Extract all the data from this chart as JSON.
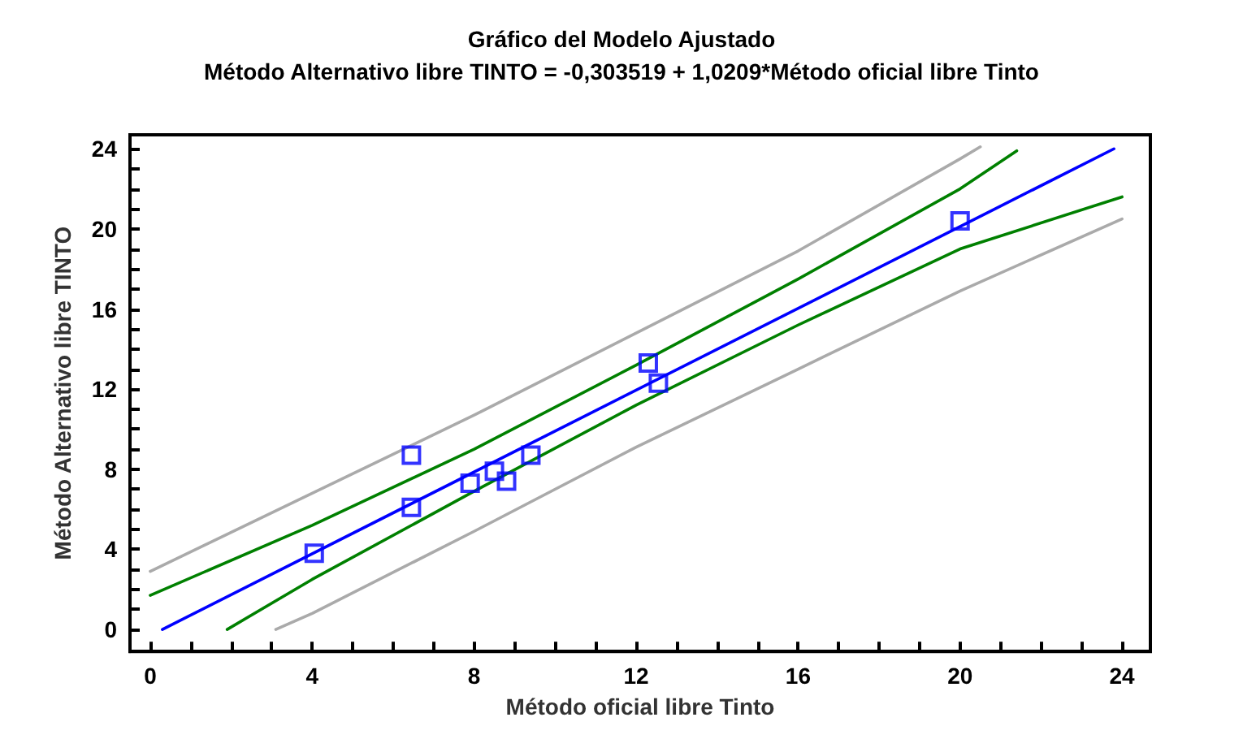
{
  "chart_data": {
    "type": "scatter",
    "title": "Gráfico del Modelo Ajustado",
    "subtitle": "Método Alternativo libre TINTO = -0,303519 + 1,0209*Método oficial libre Tinto",
    "xlabel": "Método oficial libre Tinto",
    "ylabel": "Método Alternativo libre TINTO",
    "xlim": [
      -0.5,
      24.7
    ],
    "ylim": [
      -1.1,
      24.7
    ],
    "xticks": [
      0,
      {
        "value": 1,
        "label": null
      },
      {
        "value": 2,
        "label": null
      },
      {
        "value": 3,
        "label": null
      },
      4,
      {
        "value": 5,
        "label": null
      },
      {
        "value": 6,
        "label": null
      },
      {
        "value": 7,
        "label": null
      },
      8,
      {
        "value": 9,
        "label": null
      },
      {
        "value": 10,
        "label": null
      },
      {
        "value": 11,
        "label": null
      },
      12,
      {
        "value": 13,
        "label": null
      },
      {
        "value": 14,
        "label": null
      },
      {
        "value": 15,
        "label": null
      },
      16,
      {
        "value": 17,
        "label": null
      },
      {
        "value": 18,
        "label": null
      },
      {
        "value": 19,
        "label": null
      },
      20,
      {
        "value": 21,
        "label": null
      },
      {
        "value": 22,
        "label": null
      },
      {
        "value": 23,
        "label": null
      },
      24
    ],
    "yticks": [
      0,
      {
        "value": 1,
        "label": null
      },
      {
        "value": 2,
        "label": null
      },
      {
        "value": 3,
        "label": null
      },
      4,
      {
        "value": 5,
        "label": null
      },
      {
        "value": 6,
        "label": null
      },
      {
        "value": 7,
        "label": null
      },
      8,
      {
        "value": 9,
        "label": null
      },
      {
        "value": 10,
        "label": null
      },
      {
        "value": 11,
        "label": null
      },
      12,
      {
        "value": 13,
        "label": null
      },
      {
        "value": 14,
        "label": null
      },
      {
        "value": 15,
        "label": null
      },
      16,
      {
        "value": 17,
        "label": null
      },
      {
        "value": 18,
        "label": null
      },
      {
        "value": 19,
        "label": null
      },
      20,
      {
        "value": 21,
        "label": null
      },
      {
        "value": 22,
        "label": null
      },
      {
        "value": 23,
        "label": null
      },
      24
    ],
    "grid": false,
    "series": [
      {
        "type": "line",
        "color": "#aaaaaa",
        "marker": "none",
        "line_style": "solid",
        "x": [
          0,
          4,
          8,
          12,
          16,
          20,
          20.5
        ],
        "values": [
          2.9,
          6.8,
          10.7,
          14.8,
          18.9,
          23.5,
          24.1
        ]
      },
      {
        "type": "line",
        "color": "#aaaaaa",
        "marker": "none",
        "line_style": "solid",
        "x": [
          3.1,
          4,
          8,
          12,
          16,
          20,
          24
        ],
        "values": [
          0,
          0.8,
          4.9,
          9.1,
          13,
          16.9,
          20.5
        ]
      },
      {
        "type": "line",
        "color": "#008000",
        "marker": "none",
        "line_style": "solid",
        "x": [
          0,
          4,
          8,
          12,
          16,
          20,
          21.4
        ],
        "values": [
          1.7,
          5.2,
          9,
          13.2,
          17.5,
          22,
          23.9
        ]
      },
      {
        "type": "line",
        "color": "#008000",
        "marker": "none",
        "line_style": "solid",
        "x": [
          1.9,
          4,
          8,
          12,
          16,
          20,
          24
        ],
        "values": [
          0,
          2.5,
          6.9,
          11.2,
          15.2,
          19,
          21.6
        ]
      },
      {
        "type": "line",
        "color": "#0000ff",
        "marker": "none",
        "line_style": "solid",
        "x": [
          0.3,
          23.8
        ],
        "values": [
          0,
          24
        ]
      },
      {
        "type": "scatter",
        "color": "#0000ff",
        "marker": "square",
        "x": [
          4.05,
          6.45,
          6.45,
          7.9,
          8.5,
          8.8,
          9.4,
          12.3,
          12.55,
          20
        ],
        "values": [
          3.8,
          8.7,
          6.1,
          7.3,
          7.9,
          7.4,
          8.7,
          13.3,
          12.3,
          20.4
        ]
      }
    ]
  }
}
